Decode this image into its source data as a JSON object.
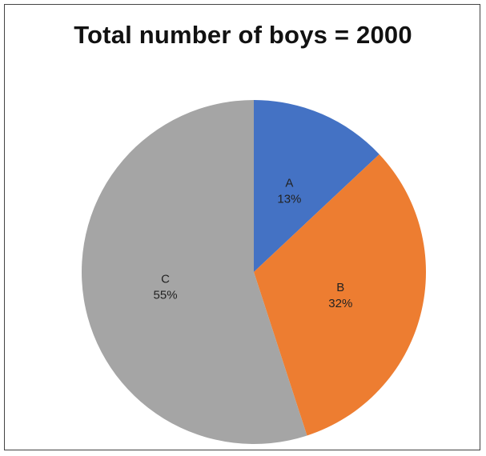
{
  "chart_data": {
    "type": "pie",
    "title": "Total number of boys = 2000",
    "categories": [
      "A",
      "B",
      "C"
    ],
    "values": [
      13,
      32,
      55
    ],
    "value_labels": [
      "13%",
      "32%",
      "55%"
    ],
    "colors": [
      "#4472C4",
      "#ED7D31",
      "#A5A5A5"
    ],
    "start_angle": "12 o'clock",
    "direction": "clockwise",
    "legend": "none"
  }
}
